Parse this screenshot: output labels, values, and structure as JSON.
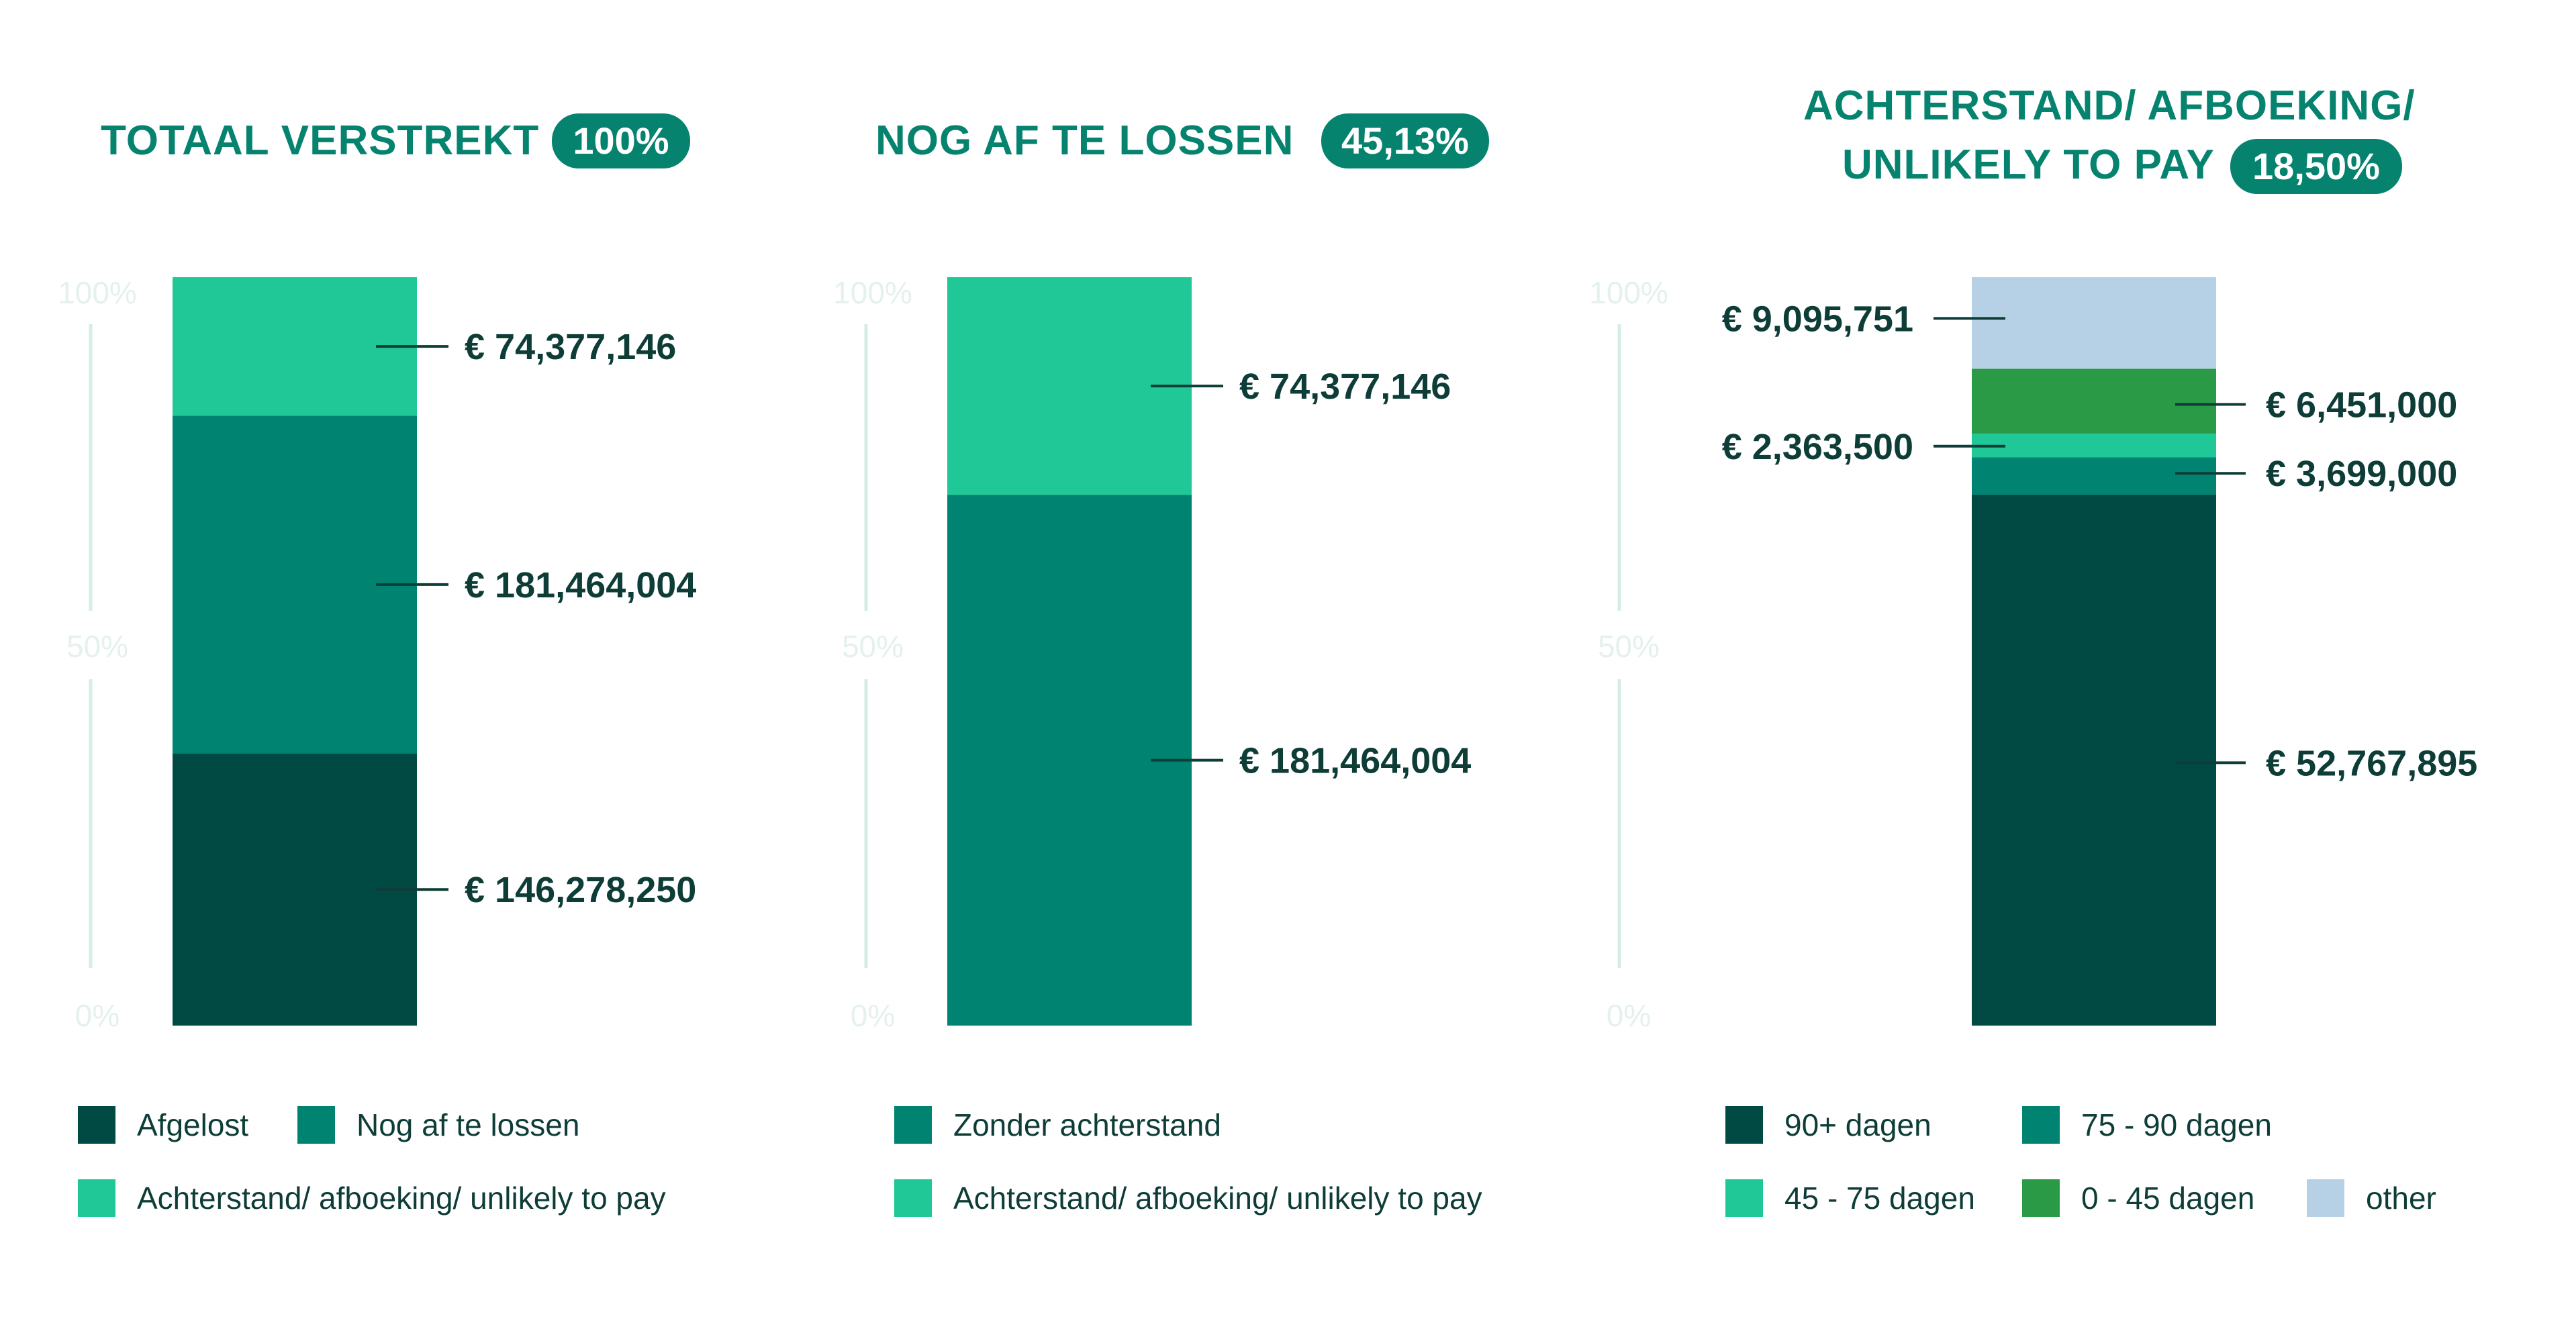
{
  "colors": {
    "afgelost": "#004a43",
    "nog_af_te_lossen": "#008370",
    "achterstand": "#21c897",
    "dagen_90_plus": "#004a43",
    "dagen_75_90": "#008370",
    "dagen_45_75": "#21c897",
    "dagen_0_45": "#2b9a47",
    "other": "#b6d1e5",
    "title": "#06836f",
    "value_label": "#0e3d38",
    "axis": "#d6ece6"
  },
  "panels": [
    {
      "title": "TOTAAL VERSTREKT",
      "badge": "100%"
    },
    {
      "title": "NOG AF TE LOSSEN",
      "badge": "45,13%"
    },
    {
      "title_line1": "ACHTERSTAND/ AFBOEKING/",
      "title_line2": "UNLIKELY TO PAY",
      "badge": "18,50%"
    }
  ],
  "chart_data": [
    {
      "type": "bar",
      "stacked": true,
      "title": "TOTAAL VERSTREKT",
      "badge": "100%",
      "yticks": [
        "100%",
        "50%",
        "0%"
      ],
      "ylim": [
        0,
        100
      ],
      "series": [
        {
          "name": "Afgelost",
          "key": "afgelost",
          "value": 146278250,
          "label": "€ 146,278,250"
        },
        {
          "name": "Nog af te lossen",
          "key": "nog_af_te_lossen",
          "value": 181464004,
          "label": "€ 181,464,004"
        },
        {
          "name": "Achterstand/ afboeking/ unlikely to pay",
          "key": "achterstand",
          "value": 74377146,
          "label": "€ 74,377,146"
        }
      ]
    },
    {
      "type": "bar",
      "stacked": true,
      "title": "NOG AF TE LOSSEN",
      "badge": "45,13%",
      "yticks": [
        "100%",
        "50%",
        "0%"
      ],
      "ylim": [
        0,
        100
      ],
      "series": [
        {
          "name": "Zonder achterstand",
          "key": "nog_af_te_lossen",
          "value": 181464004,
          "label": "€ 181,464,004"
        },
        {
          "name": "Achterstand/ afboeking/ unlikely to pay",
          "key": "achterstand",
          "value": 74377146,
          "label": "€ 74,377,146"
        }
      ]
    },
    {
      "type": "bar",
      "stacked": true,
      "title": "ACHTERSTAND/ AFBOEKING/ UNLIKELY TO PAY",
      "badge": "18,50%",
      "yticks": [
        "100%",
        "50%",
        "0%"
      ],
      "ylim": [
        0,
        100
      ],
      "series": [
        {
          "name": "90+ dagen",
          "key": "dagen_90_plus",
          "value": 52767895,
          "label": "€ 52,767,895",
          "label_side": "right"
        },
        {
          "name": "75 - 90 dagen",
          "key": "dagen_75_90",
          "value": 3699000,
          "label": "€ 3,699,000",
          "label_side": "right"
        },
        {
          "name": "45 - 75 dagen",
          "key": "dagen_45_75",
          "value": 2363500,
          "label": "€ 2,363,500",
          "label_side": "left"
        },
        {
          "name": "0 - 45 dagen",
          "key": "dagen_0_45",
          "value": 6451000,
          "label": "€ 6,451,000",
          "label_side": "right"
        },
        {
          "name": "other",
          "key": "other",
          "value": 9095751,
          "label": "€ 9,095,751",
          "label_side": "left"
        }
      ]
    }
  ],
  "legends": [
    {
      "items": [
        {
          "label": "Afgelost",
          "key": "afgelost"
        },
        {
          "label": "Nog af te lossen",
          "key": "nog_af_te_lossen"
        },
        {
          "label": "Achterstand/ afboeking/ unlikely to pay",
          "key": "achterstand"
        }
      ]
    },
    {
      "items": [
        {
          "label": "Zonder achterstand",
          "key": "nog_af_te_lossen"
        },
        {
          "label": "Achterstand/ afboeking/ unlikely to pay",
          "key": "achterstand"
        }
      ]
    },
    {
      "items": [
        {
          "label": "90+ dagen",
          "key": "dagen_90_plus"
        },
        {
          "label": "75 - 90 dagen",
          "key": "dagen_75_90"
        },
        {
          "label": "45 - 75 dagen",
          "key": "dagen_45_75"
        },
        {
          "label": "0 - 45 dagen",
          "key": "dagen_0_45"
        },
        {
          "label": "other",
          "key": "other"
        }
      ]
    }
  ]
}
